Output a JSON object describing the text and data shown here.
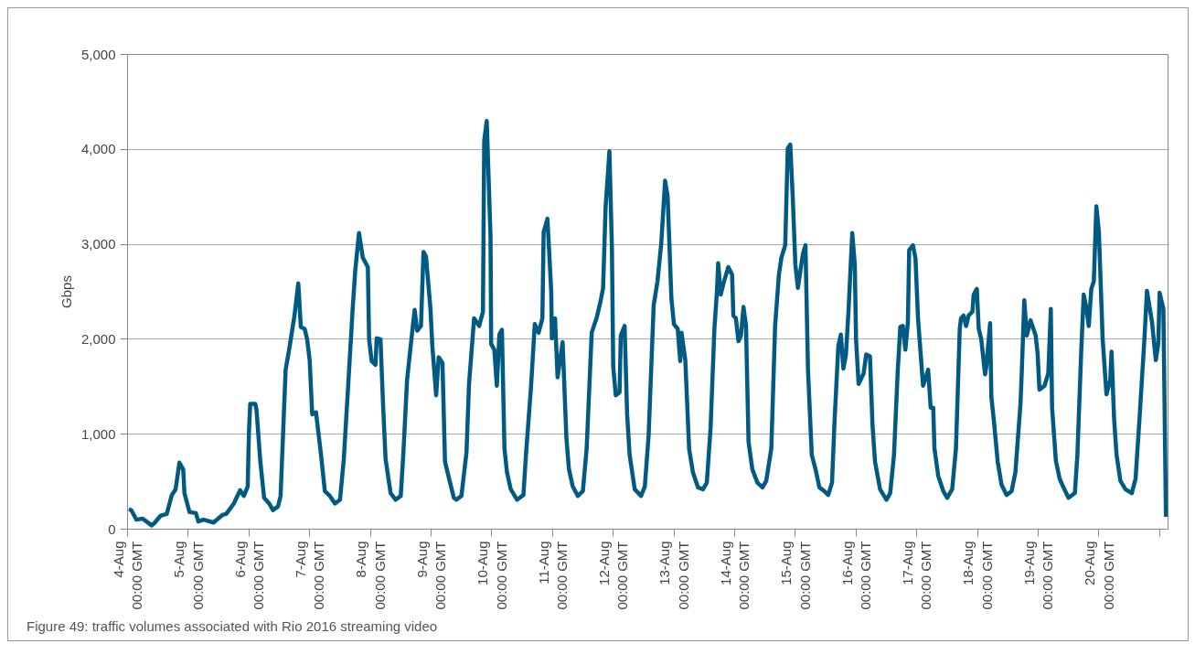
{
  "chart_data": {
    "type": "line",
    "ylabel": "Gbps",
    "annotations": [
      "Figure 49: traffic volumes associated with Rio 2016 streaming video"
    ],
    "xlim": [
      "2016-08-04T00:00",
      "2016-08-21T03:20"
    ],
    "ylim": [
      0,
      5000
    ],
    "xticks": [
      {
        "value": "2016-08-04T00:00",
        "label": "4-Aug\n00:00 GMT"
      },
      {
        "value": "2016-08-05T00:00",
        "label": "5-Aug\n00:00 GMT"
      },
      {
        "value": "2016-08-06T00:00",
        "label": "6-Aug\n00:00 GMT"
      },
      {
        "value": "2016-08-07T00:00",
        "label": "7-Aug\n00:00 GMT"
      },
      {
        "value": "2016-08-08T00:00",
        "label": "8-Aug\n00:00 GMT"
      },
      {
        "value": "2016-08-09T00:00",
        "label": "9-Aug\n00:00 GMT"
      },
      {
        "value": "2016-08-10T00:00",
        "label": "10-Aug\n00:00 GMT"
      },
      {
        "value": "2016-08-11T00:00",
        "label": "11-Aug\n00:00 GMT"
      },
      {
        "value": "2016-08-12T00:00",
        "label": "12-Aug\n00:00 GMT"
      },
      {
        "value": "2016-08-13T00:00",
        "label": "13-Aug\n00:00 GMT"
      },
      {
        "value": "2016-08-14T00:00",
        "label": "14-Aug\n00:00 GMT"
      },
      {
        "value": "2016-08-15T00:00",
        "label": "15-Aug\n00:00 GMT"
      },
      {
        "value": "2016-08-16T00:00",
        "label": "16-Aug\n00:00 GMT"
      },
      {
        "value": "2016-08-17T00:00",
        "label": "17-Aug\n00:00 GMT"
      },
      {
        "value": "2016-08-18T00:00",
        "label": "18-Aug\n00:00 GMT"
      },
      {
        "value": "2016-08-19T00:00",
        "label": "19-Aug\n00:00 GMT"
      },
      {
        "value": "2016-08-20T00:00",
        "label": "20-Aug\n00:00 GMT"
      },
      {
        "value": "2016-08-21T00:00",
        "label": null
      }
    ],
    "yticks": [
      0,
      {
        "value": 1000,
        "label": "1,000"
      },
      {
        "value": 2000,
        "label": "2,000"
      },
      {
        "value": 3000,
        "label": "3,000"
      },
      {
        "value": 4000,
        "label": "4,000"
      },
      {
        "value": 5000,
        "label": "5,000"
      }
    ],
    "grid": "y",
    "marker": "none",
    "line_style": "solid",
    "series": [
      {
        "color": "#005a82",
        "x": [
          "2016-08-04T00:30",
          "2016-08-04T01:30",
          "2016-08-04T03:30",
          "2016-08-04T06:00",
          "2016-08-04T07:00",
          "2016-08-04T09:30",
          "2016-08-04T10:30",
          "2016-08-04T13:00",
          "2016-08-04T15:30",
          "2016-08-04T16:30",
          "2016-08-04T17:30",
          "2016-08-04T19:00",
          "2016-08-04T20:30",
          "2016-08-04T22:00",
          "2016-08-04T22:30",
          "2016-08-05T00:30",
          "2016-08-05T03:00",
          "2016-08-05T04:00",
          "2016-08-05T06:00",
          "2016-08-05T10:00",
          "2016-08-05T13:30",
          "2016-08-05T15:00",
          "2016-08-05T18:00",
          "2016-08-05T20:30",
          "2016-08-05T22:00",
          "2016-08-05T23:30",
          "2016-08-06T00:00",
          "2016-08-06T00:30",
          "2016-08-06T02:30",
          "2016-08-06T03:00",
          "2016-08-06T04:30",
          "2016-08-06T06:00",
          "2016-08-06T08:00",
          "2016-08-06T09:30",
          "2016-08-06T11:30",
          "2016-08-06T12:30",
          "2016-08-06T14:30",
          "2016-08-06T16:00",
          "2016-08-06T18:00",
          "2016-08-06T19:30",
          "2016-08-06T20:30",
          "2016-08-06T22:00",
          "2016-08-06T23:00",
          "2016-08-07T00:00",
          "2016-08-07T01:00",
          "2016-08-07T02:30",
          "2016-08-07T04:30",
          "2016-08-07T06:00",
          "2016-08-07T08:00",
          "2016-08-07T10:00",
          "2016-08-07T12:00",
          "2016-08-07T13:30",
          "2016-08-07T15:30",
          "2016-08-07T17:00",
          "2016-08-07T18:00",
          "2016-08-07T19:30",
          "2016-08-07T21:00",
          "2016-08-07T23:00",
          "2016-08-07T23:30",
          "2016-08-08T00:30",
          "2016-08-08T02:00",
          "2016-08-08T02:30",
          "2016-08-08T04:00",
          "2016-08-08T05:00",
          "2016-08-08T06:00",
          "2016-08-08T08:00",
          "2016-08-08T10:00",
          "2016-08-08T12:00",
          "2016-08-08T13:00",
          "2016-08-08T14:30",
          "2016-08-08T16:30",
          "2016-08-08T17:30",
          "2016-08-08T18:30",
          "2016-08-08T20:00",
          "2016-08-08T21:00",
          "2016-08-08T22:00",
          "2016-08-08T23:45",
          "2016-08-09T00:30",
          "2016-08-09T02:00",
          "2016-08-09T03:00",
          "2016-08-09T04:30",
          "2016-08-09T05:30",
          "2016-08-09T07:30",
          "2016-08-09T09:00",
          "2016-08-09T10:00",
          "2016-08-09T12:00",
          "2016-08-09T14:00",
          "2016-08-09T15:00",
          "2016-08-09T17:00",
          "2016-08-09T19:00",
          "2016-08-09T20:30",
          "2016-08-09T21:00",
          "2016-08-09T22:00",
          "2016-08-09T23:30",
          "2016-08-09T23:45",
          "2016-08-10T01:00",
          "2016-08-10T02:00",
          "2016-08-10T03:00",
          "2016-08-10T04:00",
          "2016-08-10T05:00",
          "2016-08-10T06:00",
          "2016-08-10T07:30",
          "2016-08-10T10:00",
          "2016-08-10T12:30",
          "2016-08-10T13:30",
          "2016-08-10T15:30",
          "2016-08-10T17:00",
          "2016-08-10T18:30",
          "2016-08-10T20:00",
          "2016-08-10T20:30",
          "2016-08-10T22:00",
          "2016-08-10T23:30",
          "2016-08-10T23:45",
          "2016-08-11T01:00",
          "2016-08-11T02:00",
          "2016-08-11T04:00",
          "2016-08-11T05:30",
          "2016-08-11T06:30",
          "2016-08-11T08:00",
          "2016-08-11T10:00",
          "2016-08-11T12:00",
          "2016-08-11T13:30",
          "2016-08-11T15:30",
          "2016-08-11T17:30",
          "2016-08-11T19:00",
          "2016-08-11T20:00",
          "2016-08-11T21:00",
          "2016-08-11T22:30",
          "2016-08-11T23:30",
          "2016-08-12T00:00",
          "2016-08-12T01:00",
          "2016-08-12T02:30",
          "2016-08-12T03:00",
          "2016-08-12T04:30",
          "2016-08-12T05:30",
          "2016-08-12T06:30",
          "2016-08-12T08:30",
          "2016-08-12T11:00",
          "2016-08-12T12:30",
          "2016-08-12T14:00",
          "2016-08-12T16:00",
          "2016-08-12T17:30",
          "2016-08-12T19:00",
          "2016-08-12T20:30",
          "2016-08-12T21:30",
          "2016-08-12T23:00",
          "2016-08-13T00:00",
          "2016-08-13T01:30",
          "2016-08-13T02:30",
          "2016-08-13T03:00",
          "2016-08-13T04:30",
          "2016-08-13T06:00",
          "2016-08-13T07:30",
          "2016-08-13T09:30",
          "2016-08-13T11:30",
          "2016-08-13T13:00",
          "2016-08-13T14:30",
          "2016-08-13T16:00",
          "2016-08-13T17:00",
          "2016-08-13T17:30",
          "2016-08-13T18:30",
          "2016-08-13T19:30",
          "2016-08-13T21:30",
          "2016-08-13T23:00",
          "2016-08-13T23:30",
          "2016-08-14T00:30",
          "2016-08-14T01:30",
          "2016-08-14T02:30",
          "2016-08-14T03:30",
          "2016-08-14T04:30",
          "2016-08-14T05:30",
          "2016-08-14T07:00",
          "2016-08-14T09:00",
          "2016-08-14T11:00",
          "2016-08-14T12:30",
          "2016-08-14T14:30",
          "2016-08-14T16:00",
          "2016-08-14T17:30",
          "2016-08-14T18:30",
          "2016-08-14T20:00",
          "2016-08-14T21:00",
          "2016-08-14T22:00",
          "2016-08-14T23:00",
          "2016-08-15T00:00",
          "2016-08-15T01:00",
          "2016-08-15T03:00",
          "2016-08-15T04:00",
          "2016-08-15T05:00",
          "2016-08-15T06:30",
          "2016-08-15T08:00",
          "2016-08-15T09:30",
          "2016-08-15T11:30",
          "2016-08-15T13:00",
          "2016-08-15T14:30",
          "2016-08-15T15:30",
          "2016-08-15T17:00",
          "2016-08-15T18:00",
          "2016-08-15T19:00",
          "2016-08-15T20:00",
          "2016-08-15T21:00",
          "2016-08-15T22:30",
          "2016-08-15T23:30",
          "2016-08-16T00:00",
          "2016-08-16T01:00",
          "2016-08-16T03:00",
          "2016-08-16T04:00",
          "2016-08-16T05:30",
          "2016-08-16T06:30",
          "2016-08-16T07:30",
          "2016-08-16T09:30",
          "2016-08-16T12:00",
          "2016-08-16T13:30",
          "2016-08-16T15:00",
          "2016-08-16T16:30",
          "2016-08-16T17:30",
          "2016-08-16T18:30",
          "2016-08-16T19:30",
          "2016-08-16T20:30",
          "2016-08-16T21:00",
          "2016-08-16T22:30",
          "2016-08-16T23:30",
          "2016-08-17T00:30",
          "2016-08-17T01:30",
          "2016-08-17T02:30",
          "2016-08-17T03:30",
          "2016-08-17T04:30",
          "2016-08-17T05:30",
          "2016-08-17T06:30",
          "2016-08-17T07:00",
          "2016-08-17T08:30",
          "2016-08-17T10:30",
          "2016-08-17T12:00",
          "2016-08-17T14:00",
          "2016-08-17T15:30",
          "2016-08-17T17:00",
          "2016-08-17T17:30",
          "2016-08-17T18:30",
          "2016-08-17T19:30",
          "2016-08-17T20:30",
          "2016-08-17T22:00",
          "2016-08-17T22:30",
          "2016-08-17T23:45",
          "2016-08-18T00:30",
          "2016-08-18T01:30",
          "2016-08-18T03:00",
          "2016-08-18T03:30",
          "2016-08-18T05:00",
          "2016-08-18T05:30",
          "2016-08-18T06:30",
          "2016-08-18T08:00",
          "2016-08-18T09:30",
          "2016-08-18T11:30",
          "2016-08-18T13:30",
          "2016-08-18T15:00",
          "2016-08-18T17:00",
          "2016-08-18T17:30",
          "2016-08-18T18:30",
          "2016-08-18T19:30",
          "2016-08-18T21:00",
          "2016-08-18T23:00",
          "2016-08-18T23:45",
          "2016-08-19T00:30",
          "2016-08-19T02:30",
          "2016-08-19T04:00",
          "2016-08-19T05:00",
          "2016-08-19T05:30",
          "2016-08-19T07:00",
          "2016-08-19T08:30",
          "2016-08-19T10:00",
          "2016-08-19T12:00",
          "2016-08-19T14:30",
          "2016-08-19T15:30",
          "2016-08-19T17:00",
          "2016-08-19T18:00",
          "2016-08-19T19:00",
          "2016-08-19T20:00",
          "2016-08-19T21:00",
          "2016-08-19T22:00",
          "2016-08-19T23:00",
          "2016-08-20T00:00",
          "2016-08-20T01:30",
          "2016-08-20T03:00",
          "2016-08-20T04:30",
          "2016-08-20T05:00",
          "2016-08-20T06:00",
          "2016-08-20T07:00",
          "2016-08-20T08:30",
          "2016-08-20T10:30",
          "2016-08-20T13:00",
          "2016-08-20T14:30",
          "2016-08-20T16:00",
          "2016-08-20T18:00",
          "2016-08-20T19:00",
          "2016-08-20T21:00",
          "2016-08-20T22:30",
          "2016-08-20T23:30",
          "2016-08-21T00:00",
          "2016-08-21T01:30",
          "2016-08-21T02:30"
        ],
        "values": [
          210,
          200,
          100,
          110,
          90,
          40,
          60,
          140,
          160,
          260,
          360,
          420,
          700,
          630,
          380,
          180,
          170,
          80,
          100,
          70,
          150,
          160,
          270,
          410,
          350,
          450,
          1030,
          1320,
          1320,
          1250,
          710,
          330,
          270,
          200,
          240,
          350,
          1680,
          1910,
          2250,
          2590,
          2130,
          2110,
          2000,
          1780,
          1210,
          1230,
          780,
          400,
          350,
          270,
          310,
          740,
          1640,
          2320,
          2720,
          3120,
          2860,
          2760,
          2000,
          1770,
          1730,
          2010,
          2000,
          1320,
          740,
          380,
          310,
          350,
          780,
          1570,
          2070,
          2310,
          2090,
          2140,
          2920,
          2870,
          2320,
          1930,
          1410,
          1810,
          1750,
          710,
          490,
          330,
          310,
          350,
          810,
          1530,
          2220,
          2140,
          2290,
          4090,
          4300,
          3080,
          1950,
          1890,
          1510,
          2050,
          2100,
          850,
          600,
          420,
          310,
          360,
          780,
          1500,
          2160,
          2070,
          2220,
          3130,
          3270,
          2500,
          2010,
          2220,
          1600,
          1970,
          960,
          630,
          450,
          350,
          400,
          850,
          2070,
          2230,
          2400,
          2540,
          3400,
          3980,
          2940,
          1710,
          1410,
          1440,
          2040,
          2140,
          1210,
          780,
          420,
          350,
          450,
          990,
          2360,
          2610,
          3010,
          3670,
          3510,
          2430,
          2160,
          2110,
          1770,
          2070,
          1780,
          850,
          600,
          440,
          420,
          490,
          1070,
          2110,
          2500,
          2800,
          2470,
          2580,
          2760,
          2680,
          2250,
          2220,
          1980,
          2040,
          2340,
          2140,
          920,
          630,
          490,
          440,
          510,
          850,
          2140,
          2680,
          2860,
          2990,
          4010,
          4050,
          3480,
          2790,
          2540,
          2900,
          2990,
          1680,
          780,
          630,
          440,
          400,
          360,
          490,
          1140,
          1930,
          2050,
          1690,
          1840,
          2290,
          3120,
          2790,
          2000,
          1530,
          1640,
          1840,
          1820,
          1100,
          710,
          420,
          310,
          380,
          780,
          1680,
          2130,
          2140,
          1890,
          2180,
          2940,
          2990,
          2850,
          2220,
          1860,
          1510,
          1590,
          1680,
          1280,
          1280,
          850,
          560,
          400,
          330,
          420,
          850,
          2110,
          2220,
          2250,
          2140,
          2250,
          2290,
          2470,
          2530,
          2110,
          2000,
          1630,
          1710,
          2170,
          1390,
          1140,
          710,
          470,
          360,
          400,
          600,
          1320,
          1640,
          2410,
          2040,
          2200,
          2040,
          1860,
          1470,
          1510,
          1640,
          2320,
          1280,
          720,
          530,
          440,
          330,
          380,
          780,
          1860,
          2470,
          2340,
          2140,
          2530,
          2610,
          3400,
          3130,
          2000,
          1420,
          1570,
          1870,
          1170,
          780,
          510,
          420,
          380,
          530,
          1140,
          2000,
          2510,
          2180,
          1780,
          1960,
          2490,
          2320,
          130
        ]
      }
    ]
  }
}
